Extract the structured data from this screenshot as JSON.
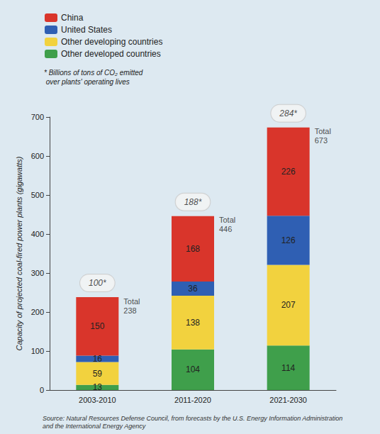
{
  "chart_data": {
    "type": "bar",
    "stacked": true,
    "data_labels": true,
    "grid": false,
    "legend": "top-left",
    "categories": [
      "2003-2010",
      "2011-2020",
      "2021-2030"
    ],
    "series": [
      {
        "name": "China",
        "color": "#d9352b",
        "values": [
          150,
          168,
          226
        ]
      },
      {
        "name": "United States",
        "color": "#2f5fb3",
        "values": [
          16,
          36,
          126
        ]
      },
      {
        "name": "Other developing countries",
        "color": "#f2d23e",
        "values": [
          59,
          138,
          207
        ]
      },
      {
        "name": "Other developed countries",
        "color": "#3f9f4b",
        "values": [
          13,
          104,
          114
        ]
      }
    ],
    "ylabel": "Capacity of projected coal-fired power plants (gigawatts)",
    "ylim": [
      0,
      700
    ],
    "yticks": [
      0,
      100,
      200,
      300,
      400,
      500,
      600,
      700
    ],
    "totals": {
      "label": "Total",
      "values": [
        238,
        446,
        673
      ]
    },
    "co2_emissions": {
      "values": [
        100,
        188,
        284
      ],
      "value_labels": [
        "100*",
        "188*",
        "284*"
      ]
    },
    "note": "* Billions of tons of CO₂ emitted over plants' operating lives",
    "source": "Source: Natural Resources Defense Council, from forecasts by the U.S. Energy Information Administration and the International Energy Agency"
  }
}
